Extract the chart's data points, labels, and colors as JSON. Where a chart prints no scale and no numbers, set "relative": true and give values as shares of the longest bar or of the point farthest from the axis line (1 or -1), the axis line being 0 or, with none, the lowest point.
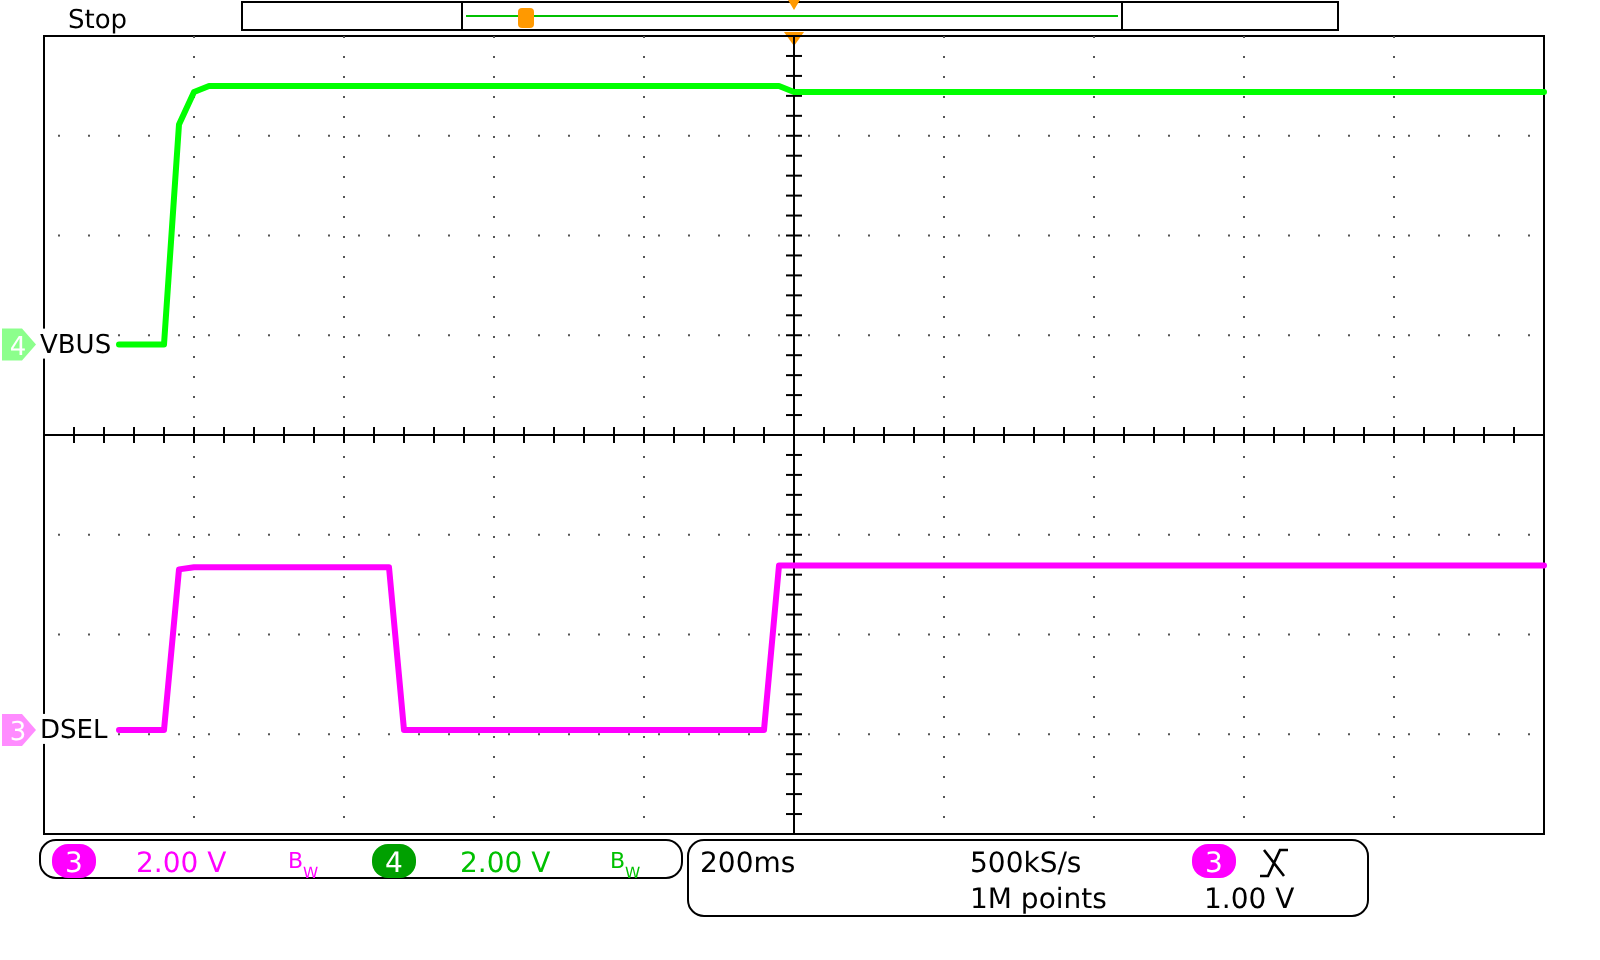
{
  "chart_data": {
    "type": "line",
    "relative": true,
    "grid": true,
    "line_style": "solid",
    "legend": "left",
    "categories": [
      null,
      null,
      null,
      null,
      null,
      null,
      null,
      null,
      null,
      null,
      null,
      null,
      null,
      null,
      null,
      null,
      null,
      null,
      null,
      null,
      null,
      null,
      null,
      null,
      null,
      null,
      null,
      null,
      null,
      null,
      null,
      null,
      null,
      null,
      null,
      null,
      null,
      null,
      null,
      null,
      null,
      null,
      null,
      null,
      null,
      null,
      null,
      null,
      null,
      null,
      null,
      null,
      null,
      null,
      null,
      null,
      null,
      null,
      null,
      null,
      null,
      null,
      null,
      null,
      null,
      null,
      null,
      null,
      null,
      null,
      null,
      null,
      null,
      null,
      null,
      null,
      null,
      null,
      null,
      null,
      null,
      null,
      null,
      null,
      null,
      null,
      null,
      null,
      null,
      null,
      null,
      null,
      null,
      null,
      null,
      null,
      null,
      null,
      null,
      null,
      null
    ],
    "series": [
      {
        "name": "VBUS",
        "color": "#00ff00",
        "values": [
          null,
          null,
          null,
          null,
          null,
          0.259,
          0.259,
          0.259,
          0.259,
          0.89,
          0.983,
          1.0,
          1.0,
          1.0,
          1.0,
          1.0,
          1.0,
          1.0,
          1.0,
          1.0,
          1.0,
          1.0,
          1.0,
          1.0,
          1.0,
          1.0,
          1.0,
          1.0,
          1.0,
          1.0,
          1.0,
          1.0,
          1.0,
          1.0,
          1.0,
          1.0,
          1.0,
          1.0,
          1.0,
          1.0,
          1.0,
          1.0,
          1.0,
          1.0,
          1.0,
          1.0,
          1.0,
          1.0,
          1.0,
          1.0,
          0.983,
          0.983,
          0.983,
          0.983,
          0.983,
          0.983,
          0.983,
          0.983,
          0.983,
          0.983,
          0.983,
          0.983,
          0.983,
          0.983,
          0.983,
          0.983,
          0.983,
          0.983,
          0.983,
          0.983,
          0.983,
          0.983,
          0.983,
          0.983,
          0.983,
          0.983,
          0.983,
          0.983,
          0.983,
          0.983,
          0.983,
          0.983,
          0.983,
          0.983,
          0.983,
          0.983,
          0.983,
          0.983,
          0.983,
          0.983,
          0.983,
          0.983,
          0.983,
          0.983,
          0.983,
          0.983,
          0.983,
          0.983,
          0.983,
          0.983,
          0.983
        ]
      },
      {
        "name": "DSEL",
        "color": "#ff00ff",
        "values": [
          null,
          null,
          null,
          null,
          null,
          -0.845,
          -0.845,
          -0.845,
          -0.845,
          -0.385,
          -0.379,
          -0.379,
          -0.379,
          -0.379,
          -0.379,
          -0.379,
          -0.379,
          -0.379,
          -0.379,
          -0.379,
          -0.379,
          -0.379,
          -0.379,
          -0.379,
          -0.845,
          -0.845,
          -0.845,
          -0.845,
          -0.845,
          -0.845,
          -0.845,
          -0.845,
          -0.845,
          -0.845,
          -0.845,
          -0.845,
          -0.845,
          -0.845,
          -0.845,
          -0.845,
          -0.845,
          -0.845,
          -0.845,
          -0.845,
          -0.845,
          -0.845,
          -0.845,
          -0.845,
          -0.845,
          -0.374,
          -0.374,
          -0.374,
          -0.374,
          -0.374,
          -0.374,
          -0.374,
          -0.374,
          -0.374,
          -0.374,
          -0.374,
          -0.374,
          -0.374,
          -0.374,
          -0.374,
          -0.374,
          -0.374,
          -0.374,
          -0.374,
          -0.374,
          -0.374,
          -0.374,
          -0.374,
          -0.374,
          -0.374,
          -0.374,
          -0.374,
          -0.374,
          -0.374,
          -0.374,
          -0.374,
          -0.374,
          -0.374,
          -0.374,
          -0.374,
          -0.374,
          -0.374,
          -0.374,
          -0.374,
          -0.374,
          -0.374,
          -0.374,
          -0.374,
          -0.374,
          -0.374,
          -0.374,
          -0.374,
          -0.374,
          -0.374,
          -0.374,
          -0.374,
          -0.374
        ]
      }
    ],
    "annotations": [
      "Stop",
      "4",
      "3",
      "3",
      "2.00 V",
      "B$_{W}$",
      "4",
      "2.00 V",
      "B$_{W}$",
      "200ms",
      "500kS/s",
      "3",
      "1M points",
      "1.00 V"
    ]
  }
}
